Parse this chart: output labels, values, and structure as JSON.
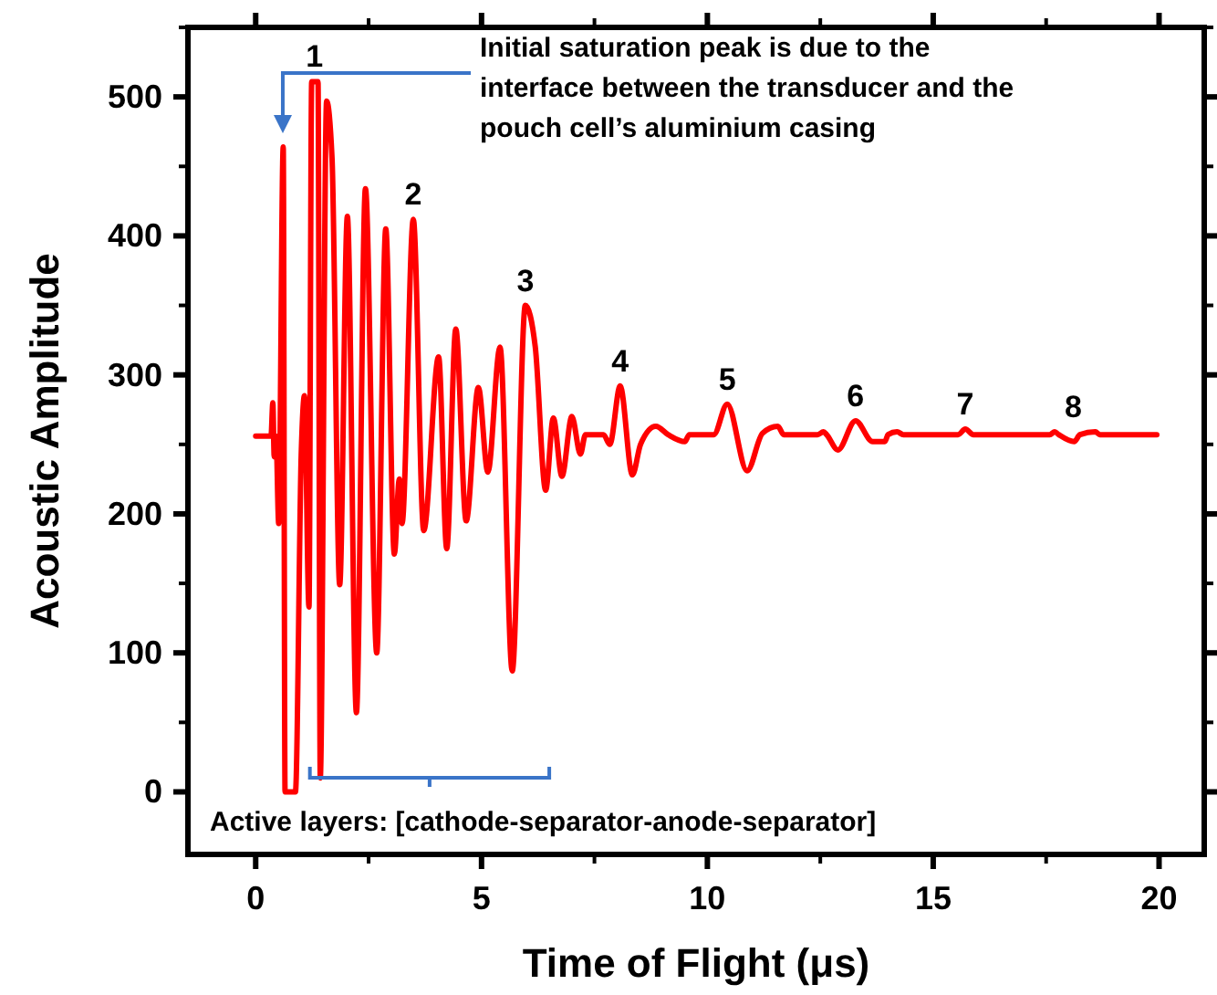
{
  "chart_data": {
    "type": "line",
    "xlabel": "Time of Flight (μs)",
    "ylabel": "Acoustic Amplitude",
    "xlim": [
      -1.5,
      21
    ],
    "ylim": [
      -45,
      550
    ],
    "xticks": [
      0,
      5,
      10,
      15,
      20
    ],
    "yticks": [
      0,
      100,
      200,
      300,
      400,
      500
    ],
    "x": [
      0,
      0.34,
      0.38,
      0.41,
      0.45,
      0.51,
      0.61,
      0.65,
      0.88,
      1.01,
      1.08,
      1.18,
      1.24,
      1.38,
      1.43,
      1.57,
      1.69,
      1.86,
      2.03,
      2.23,
      2.43,
      2.68,
      2.88,
      3.07,
      3.18,
      3.24,
      3.49,
      3.72,
      4.05,
      4.23,
      4.43,
      4.66,
      4.93,
      5.14,
      5.41,
      5.68,
      5.97,
      6.19,
      6.42,
      6.59,
      6.78,
      7.0,
      7.19,
      7.3,
      7.7,
      7.84,
      8.07,
      8.34,
      8.52,
      8.86,
      9.13,
      9.5,
      9.6,
      10.14,
      10.44,
      10.88,
      11.22,
      11.56,
      11.69,
      12.44,
      12.57,
      12.64,
      12.89,
      13.28,
      13.66,
      13.93,
      14.0,
      14.2,
      14.34,
      15.55,
      15.71,
      15.89,
      17.58,
      17.69,
      17.78,
      18.12,
      18.25,
      18.59,
      18.69,
      19.95
    ],
    "series": [
      {
        "color": "#ff0000",
        "values": [
          256,
          256,
          280,
          241,
          256,
          193,
          464,
          0,
          0,
          245,
          285,
          133,
          511,
          511,
          10,
          497,
          456,
          149,
          414,
          57,
          434,
          100,
          405,
          171,
          225,
          193,
          412,
          188,
          313,
          175,
          333,
          195,
          291,
          230,
          320,
          87,
          350,
          320,
          217,
          269,
          227,
          270,
          243,
          257,
          257,
          250,
          292,
          228,
          250,
          263,
          257,
          252,
          257,
          257,
          279,
          231,
          258,
          263,
          257,
          257,
          259,
          257,
          246,
          267,
          252,
          252,
          257,
          259,
          257,
          257,
          261,
          257,
          257,
          259,
          257,
          252,
          257,
          259,
          257,
          257
        ]
      }
    ],
    "annotations": [
      {
        "text": "1",
        "x": 1.3,
        "y": 511
      },
      {
        "text": "2",
        "x": 3.49,
        "y": 412
      },
      {
        "text": "3",
        "x": 5.97,
        "y": 350
      },
      {
        "text": "4",
        "x": 8.07,
        "y": 292
      },
      {
        "text": "5",
        "x": 10.44,
        "y": 279
      },
      {
        "text": "6",
        "x": 13.28,
        "y": 267
      },
      {
        "text": "7",
        "x": 15.71,
        "y": 261
      },
      {
        "text": "8",
        "x": 18.1,
        "y": 259
      },
      "Initial saturation peak is due to the interface between the transducer and the pouch cell’s aluminium casing",
      "Active layers: [cathode-separator-anode-separator]"
    ]
  }
}
